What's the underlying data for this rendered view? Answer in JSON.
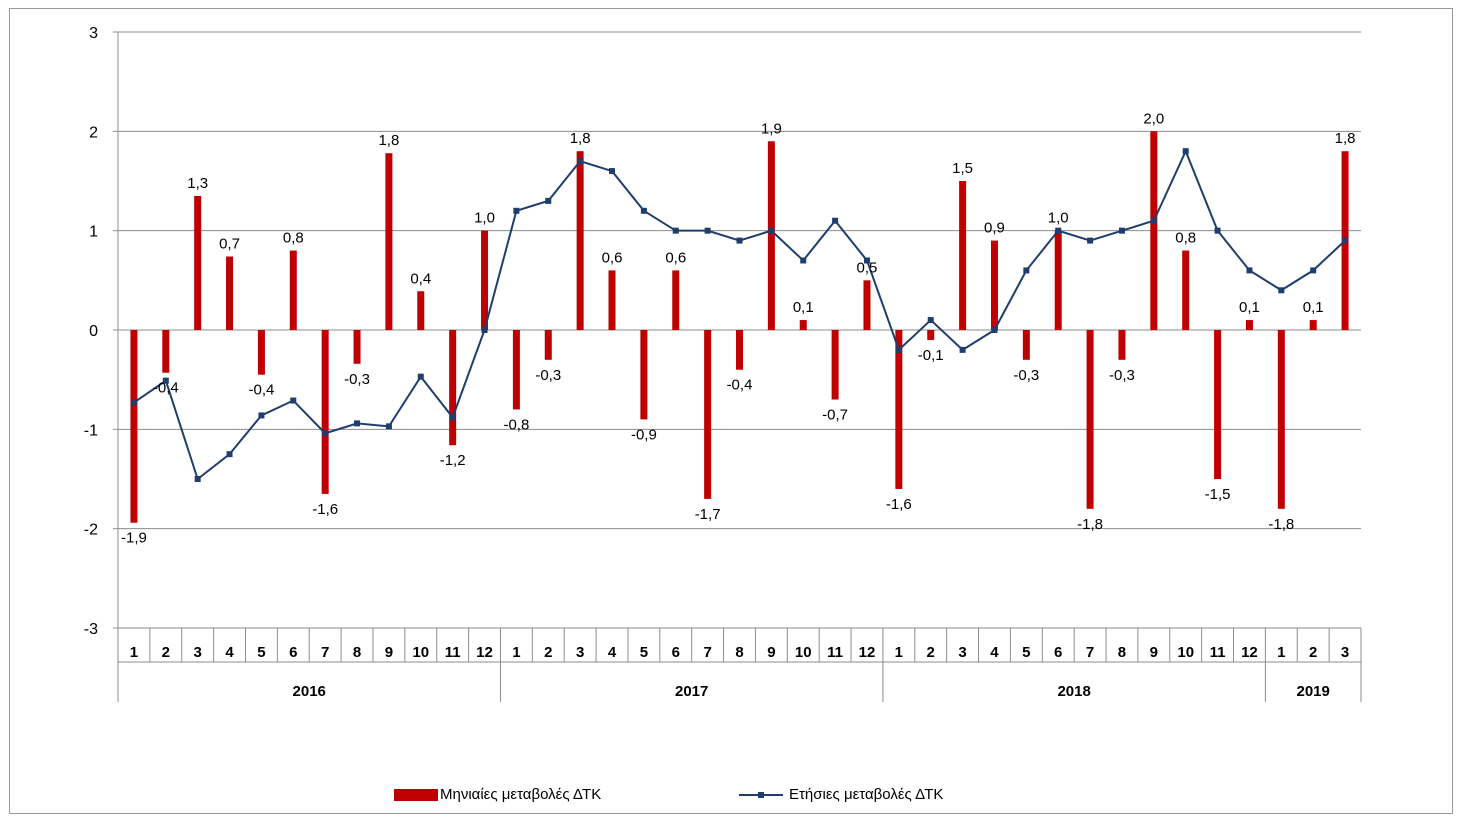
{
  "chart_data": {
    "type": "bar",
    "title": "",
    "xlabel": "",
    "ylabel": "",
    "ylim": [
      -3,
      3
    ],
    "yticks": [
      3,
      2,
      1,
      0,
      -1,
      -2,
      -3
    ],
    "grid": true,
    "legend_position": "bottom",
    "month_labels": [
      "1",
      "2",
      "3",
      "4",
      "5",
      "6",
      "7",
      "8",
      "9",
      "10",
      "11",
      "12",
      "1",
      "2",
      "3",
      "4",
      "5",
      "6",
      "7",
      "8",
      "9",
      "10",
      "11",
      "12",
      "1",
      "2",
      "3",
      "4",
      "5",
      "6",
      "7",
      "8",
      "9",
      "10",
      "11",
      "12",
      "1",
      "2",
      "3"
    ],
    "year_groups": [
      {
        "label": "2016",
        "count": 12
      },
      {
        "label": "2017",
        "count": 12
      },
      {
        "label": "2018",
        "count": 12
      },
      {
        "label": "2019",
        "count": 3
      }
    ],
    "series": [
      {
        "name": "Μηνιαίες μεταβολές ΔΤΚ",
        "kind": "bar",
        "color": "#c00000",
        "values": [
          -1.94,
          -0.43,
          1.35,
          0.74,
          -0.45,
          0.8,
          -1.65,
          -0.34,
          1.78,
          0.39,
          -1.16,
          1.0,
          -0.8,
          -0.3,
          1.8,
          0.6,
          -0.9,
          0.6,
          -1.7,
          -0.4,
          1.9,
          0.1,
          -0.7,
          0.5,
          -1.6,
          -0.1,
          1.5,
          0.9,
          -0.3,
          1.0,
          -1.8,
          -0.3,
          2.0,
          0.8,
          -1.5,
          0.1,
          -1.8,
          0.1,
          1.8
        ],
        "labels": [
          "-1,9",
          "-0,4",
          "1,3",
          "0,7",
          "-0,4",
          "0,8",
          "-1,6",
          "-0,3",
          "1,8",
          "0,4",
          "-1,2",
          "1,0",
          "-0,8",
          "-0,3",
          "1,8",
          "0,6",
          "-0,9",
          "0,6",
          "-1,7",
          "-0,4",
          "1,9",
          "0,1",
          "-0,7",
          "0,5",
          "-1,6",
          "-0,1",
          "1,5",
          "0,9",
          "-0,3",
          "1,0",
          "-1,8",
          "-0,3",
          "2,0",
          "0,8",
          "-1,5",
          "0,1",
          "-1,8",
          "0,1",
          "1,8"
        ]
      },
      {
        "name": "Ετήσιες μεταβολές ΔΤΚ",
        "kind": "line",
        "color": "#1f3e6e",
        "values": [
          -0.73,
          -0.51,
          -1.5,
          -1.25,
          -0.86,
          -0.71,
          -1.04,
          -0.94,
          -0.97,
          -0.47,
          -0.88,
          0.0,
          1.2,
          1.3,
          1.7,
          1.6,
          1.2,
          1.0,
          1.0,
          0.9,
          1.0,
          0.7,
          1.1,
          0.7,
          -0.2,
          0.1,
          -0.2,
          0.0,
          0.6,
          1.0,
          0.9,
          1.0,
          1.1,
          1.8,
          1.0,
          0.6,
          0.4,
          0.6,
          0.9
        ]
      }
    ]
  }
}
